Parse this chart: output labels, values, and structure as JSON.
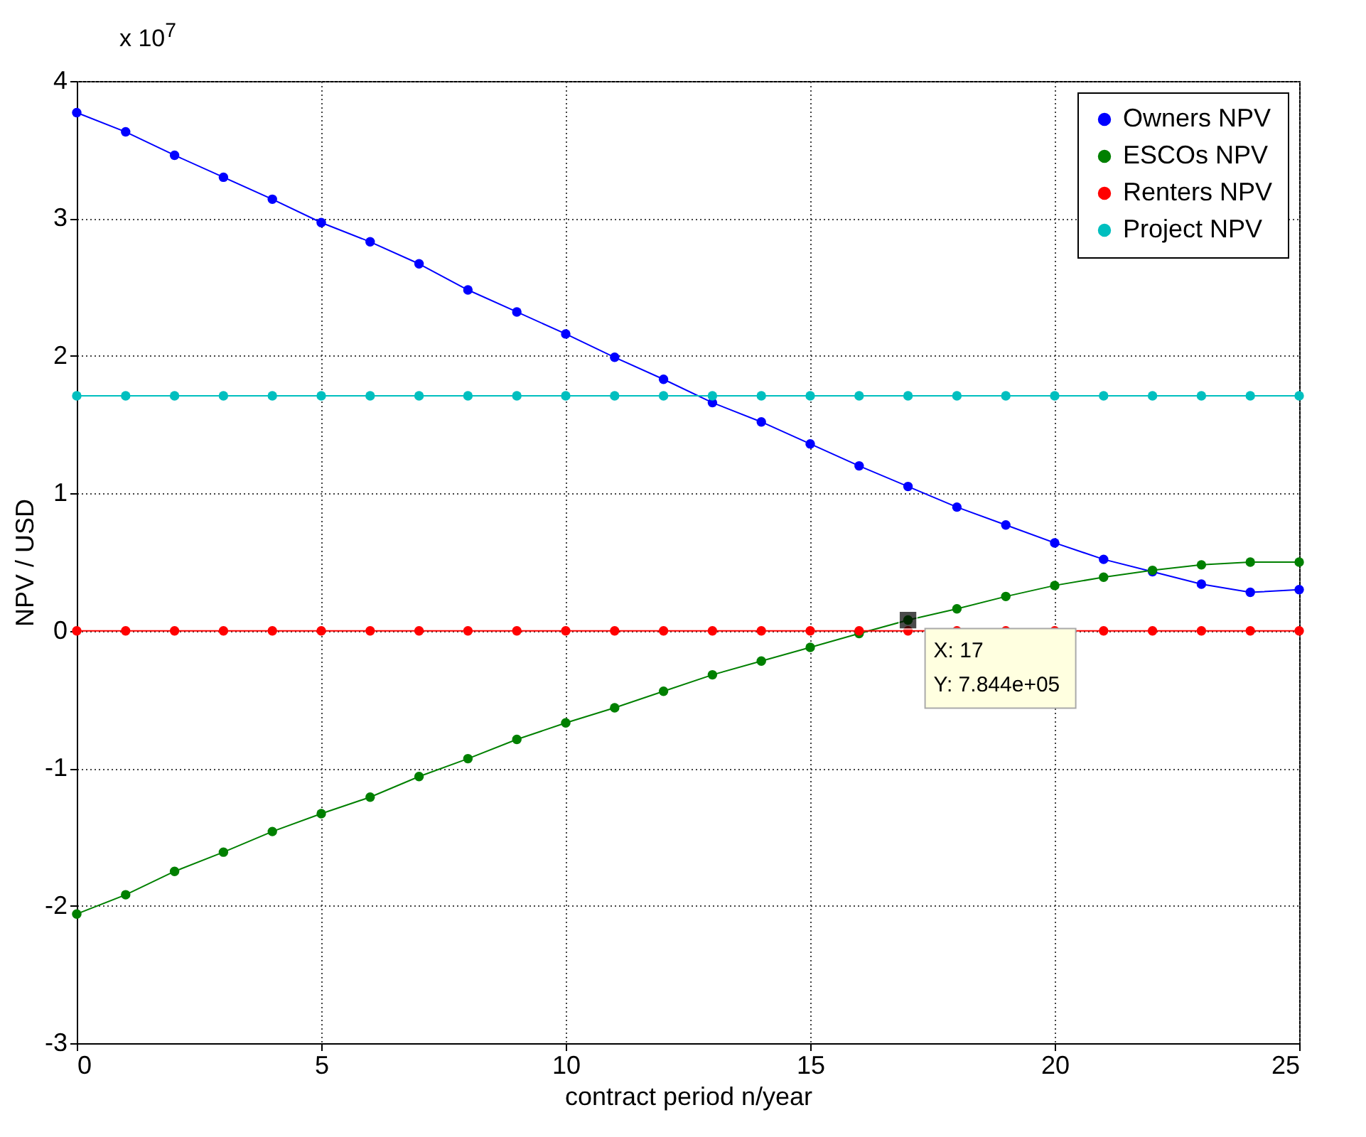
{
  "chart_data": {
    "type": "line",
    "xlabel": "contract period n/year",
    "ylabel": "NPV / USD",
    "x": [
      0,
      1,
      2,
      3,
      4,
      5,
      6,
      7,
      8,
      9,
      10,
      11,
      12,
      13,
      14,
      15,
      16,
      17,
      18,
      19,
      20,
      21,
      22,
      23,
      24,
      25
    ],
    "series": [
      {
        "name": "Owners NPV",
        "color": "#0000ff",
        "values": [
          3.77,
          3.63,
          3.46,
          3.3,
          3.14,
          2.97,
          2.83,
          2.67,
          2.48,
          2.32,
          2.16,
          1.99,
          1.83,
          1.66,
          1.52,
          1.36,
          1.2,
          1.05,
          0.9,
          0.77,
          0.64,
          0.52,
          0.43,
          0.34,
          0.28,
          0.3
        ]
      },
      {
        "name": "ESCOs NPV",
        "color": "#008000",
        "values": [
          -2.06,
          -1.92,
          -1.75,
          -1.61,
          -1.46,
          -1.33,
          -1.21,
          -1.06,
          -0.93,
          -0.79,
          -0.67,
          -0.56,
          -0.44,
          -0.32,
          -0.22,
          -0.12,
          -0.02,
          0.0784,
          0.16,
          0.25,
          0.33,
          0.39,
          0.44,
          0.48,
          0.5,
          0.5
        ]
      },
      {
        "name": "Renters NPV",
        "color": "#ff0000",
        "values": [
          0,
          0,
          0,
          0,
          0,
          0,
          0,
          0,
          0,
          0,
          0,
          0,
          0,
          0,
          0,
          0,
          0,
          0,
          0,
          0,
          0,
          0,
          0,
          0,
          0,
          0
        ]
      },
      {
        "name": "Project NPV",
        "color": "#00bfbf",
        "values": [
          1.71,
          1.71,
          1.71,
          1.71,
          1.71,
          1.71,
          1.71,
          1.71,
          1.71,
          1.71,
          1.71,
          1.71,
          1.71,
          1.71,
          1.71,
          1.71,
          1.71,
          1.71,
          1.71,
          1.71,
          1.71,
          1.71,
          1.71,
          1.71,
          1.71,
          1.71
        ]
      }
    ],
    "xlim": [
      0,
      25
    ],
    "xticks": [
      0,
      5,
      10,
      15,
      20,
      25
    ],
    "ylim": [
      -3,
      4
    ],
    "yticks": [
      -3,
      -2,
      -1,
      0,
      1,
      2,
      3,
      4
    ],
    "annotations": [
      "x 10$^{7}$",
      {
        "text": "X: 17\nY: 7.844e+05",
        "x": 17,
        "y": 0.07844
      }
    ],
    "grid": true,
    "legend": "top right",
    "marker": "circle",
    "line_style": "solid"
  }
}
